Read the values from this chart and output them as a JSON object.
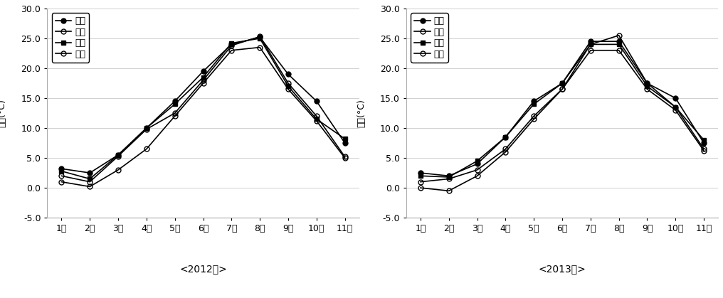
{
  "months": [
    "1월",
    "2월",
    "3월",
    "4월",
    "5월",
    "6월",
    "7월",
    "8월",
    "9월",
    "10월",
    "11월"
  ],
  "year2012": {
    "성산": [
      3.2,
      2.5,
      5.5,
      10.0,
      14.5,
      19.5,
      24.0,
      25.2,
      19.0,
      14.5,
      7.5
    ],
    "신효": [
      2.0,
      1.0,
      5.3,
      9.8,
      12.5,
      18.0,
      23.8,
      25.3,
      17.5,
      12.0,
      5.2
    ],
    "고산": [
      2.8,
      1.5,
      5.5,
      10.0,
      14.0,
      18.5,
      24.2,
      25.0,
      17.0,
      11.5,
      8.2
    ],
    "신초": [
      1.0,
      0.2,
      3.0,
      6.5,
      12.0,
      17.5,
      23.0,
      23.5,
      16.5,
      11.2,
      5.0
    ]
  },
  "year2013": {
    "성산": [
      2.5,
      2.0,
      4.0,
      8.5,
      14.5,
      17.5,
      24.5,
      24.5,
      17.5,
      15.0,
      7.5
    ],
    "신효": [
      1.0,
      1.5,
      3.0,
      6.5,
      12.0,
      16.5,
      24.0,
      25.5,
      17.5,
      13.5,
      6.5
    ],
    "고산": [
      2.0,
      1.8,
      4.5,
      8.5,
      14.0,
      17.5,
      24.0,
      24.0,
      17.0,
      13.5,
      8.0
    ],
    "신초": [
      0.0,
      -0.5,
      2.0,
      6.0,
      11.5,
      16.5,
      23.0,
      23.0,
      16.5,
      13.0,
      6.2
    ]
  },
  "ylim": [
    -5.0,
    30.0
  ],
  "yticks": [
    -5.0,
    0.0,
    5.0,
    10.0,
    15.0,
    20.0,
    25.0,
    30.0
  ],
  "ylabel": "기온(°C)",
  "subtitle2012": "<2012년>",
  "subtitle2013": "<2013년>",
  "legend_labels": [
    "성산",
    "신효",
    "고산",
    "신초"
  ]
}
